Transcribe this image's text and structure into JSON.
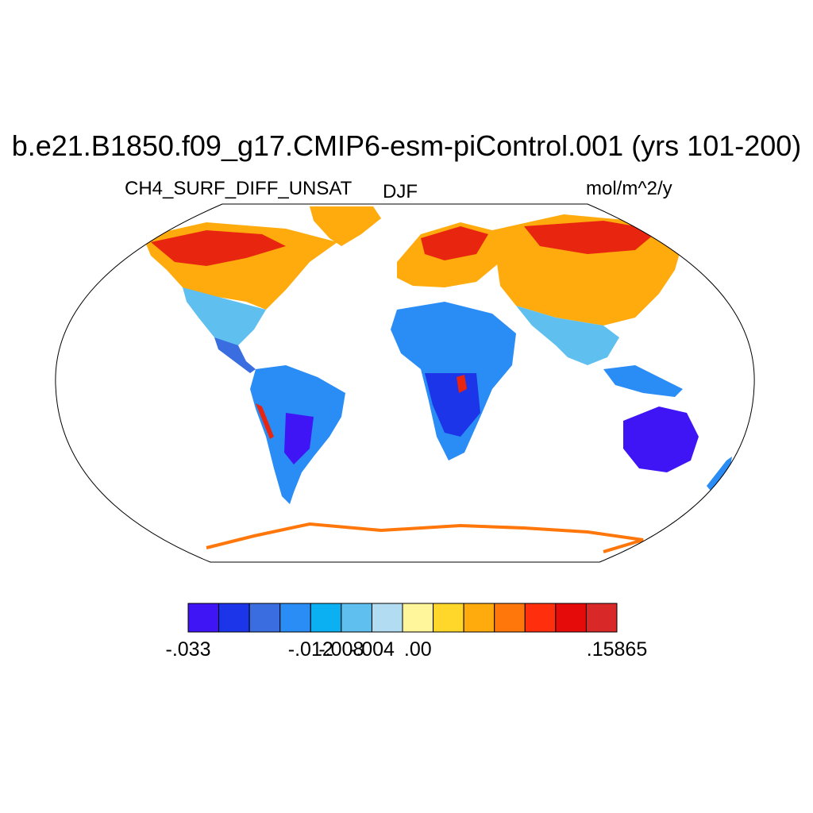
{
  "title": "b.e21.B1850.f09_g17.CMIP6-esm-piControl.001 (yrs 101-200)",
  "variable": "CH4_SURF_DIFF_UNSAT",
  "season": "DJF",
  "units": "mol/m^2/y",
  "colorbar": {
    "colors": [
      "#3f15f5",
      "#1d35e8",
      "#3a6ee0",
      "#2a8cf5",
      "#0bb0f2",
      "#5fc0f0",
      "#b2dcf2",
      "#fff59a",
      "#ffd72a",
      "#ffaa0d",
      "#ff770a",
      "#ff2e0c",
      "#e60b0b",
      "#d82828"
    ],
    "labels": [
      {
        "text": "-.033",
        "boundary": 0
      },
      {
        "text": "-.012",
        "boundary": 4
      },
      {
        "text": "-.008",
        "boundary": 5
      },
      {
        "text": "-.004",
        "boundary": 6
      },
      {
        "text": ".00",
        "boundary": 7.5
      },
      {
        "text": ".15865",
        "boundary": 14
      }
    ]
  }
}
